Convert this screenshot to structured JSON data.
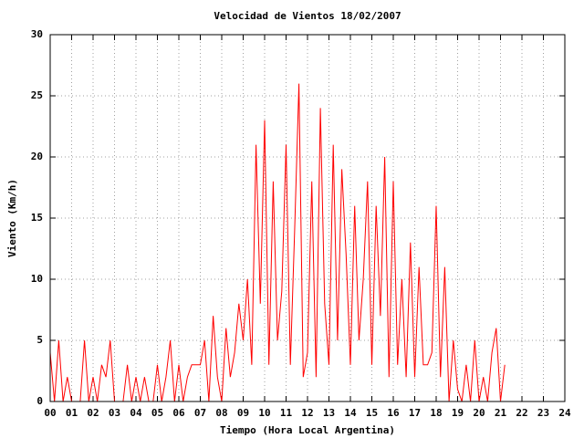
{
  "chart_data": {
    "type": "line",
    "title": "Velocidad de Vientos 18/02/2007",
    "xlabel": "Tiempo (Hora Local Argentina)",
    "ylabel": "Viento (Km/h)",
    "color": "#ff0000",
    "grid": true,
    "xlim": [
      0,
      24
    ],
    "ylim": [
      0,
      30
    ],
    "yticks": [
      0,
      5,
      10,
      15,
      20,
      25,
      30
    ],
    "xticks": [
      {
        "value": 0,
        "label": "00"
      },
      {
        "value": 1,
        "label": "01"
      },
      {
        "value": 2,
        "label": "02"
      },
      {
        "value": 3,
        "label": "03"
      },
      {
        "value": 4,
        "label": "04"
      },
      {
        "value": 5,
        "label": "05"
      },
      {
        "value": 6,
        "label": "06"
      },
      {
        "value": 7,
        "label": "07"
      },
      {
        "value": 8,
        "label": "08"
      },
      {
        "value": 9,
        "label": "09"
      },
      {
        "value": 10,
        "label": "10"
      },
      {
        "value": 11,
        "label": "11"
      },
      {
        "value": 12,
        "label": "12"
      },
      {
        "value": 13,
        "label": "13"
      },
      {
        "value": 14,
        "label": "14"
      },
      {
        "value": 15,
        "label": "15"
      },
      {
        "value": 16,
        "label": "16"
      },
      {
        "value": 17,
        "label": "17"
      },
      {
        "value": 18,
        "label": "18"
      },
      {
        "value": 19,
        "label": "19"
      },
      {
        "value": 20,
        "label": "20"
      },
      {
        "value": 21,
        "label": "21"
      },
      {
        "value": 22,
        "label": "22"
      },
      {
        "value": 23,
        "label": "23"
      },
      {
        "value": 24,
        "label": "24"
      }
    ],
    "x": [
      0,
      0.2,
      0.4,
      0.6,
      0.8,
      1,
      1.2,
      1.4,
      1.6,
      1.8,
      2,
      2.2,
      2.4,
      2.6,
      2.8,
      3,
      3.2,
      3.4,
      3.6,
      3.8,
      4,
      4.2,
      4.4,
      4.6,
      4.8,
      5,
      5.2,
      5.4,
      5.6,
      5.8,
      6,
      6.2,
      6.4,
      6.6,
      6.8,
      7,
      7.2,
      7.4,
      7.6,
      7.8,
      8,
      8.2,
      8.4,
      8.6,
      8.8,
      9,
      9.2,
      9.4,
      9.6,
      9.8,
      10,
      10.2,
      10.4,
      10.6,
      10.8,
      11,
      11.2,
      11.4,
      11.6,
      11.8,
      12,
      12.2,
      12.4,
      12.6,
      12.8,
      13,
      13.2,
      13.4,
      13.6,
      13.8,
      14,
      14.2,
      14.4,
      14.6,
      14.8,
      15,
      15.2,
      15.4,
      15.6,
      15.8,
      16,
      16.2,
      16.4,
      16.6,
      16.8,
      17,
      17.2,
      17.4,
      17.6,
      17.8,
      18,
      18.2,
      18.4,
      18.6,
      18.8,
      19,
      19.2,
      19.4,
      19.6,
      19.8,
      20,
      20.2,
      20.4,
      20.6,
      20.8,
      21,
      21.2
    ],
    "values": [
      4,
      0,
      5,
      0,
      2,
      0,
      0,
      0,
      5,
      0,
      2,
      0,
      3,
      2,
      5,
      0,
      0,
      0,
      3,
      0,
      2,
      0,
      2,
      0,
      0,
      3,
      0,
      2,
      5,
      0,
      3,
      0,
      2,
      3,
      3,
      3,
      5,
      0,
      7,
      2,
      0,
      6,
      2,
      4,
      8,
      5,
      10,
      3,
      21,
      8,
      23,
      3,
      18,
      5,
      9,
      21,
      3,
      14,
      26,
      2,
      4,
      18,
      2,
      24,
      8,
      3,
      21,
      5,
      19,
      12,
      3,
      16,
      5,
      10,
      18,
      3,
      16,
      7,
      20,
      2,
      18,
      3,
      10,
      2,
      13,
      2,
      11,
      3,
      3,
      4,
      16,
      2,
      11,
      0,
      5,
      1,
      0,
      3,
      0,
      5,
      0,
      2,
      0,
      4,
      6,
      0,
      3
    ]
  }
}
